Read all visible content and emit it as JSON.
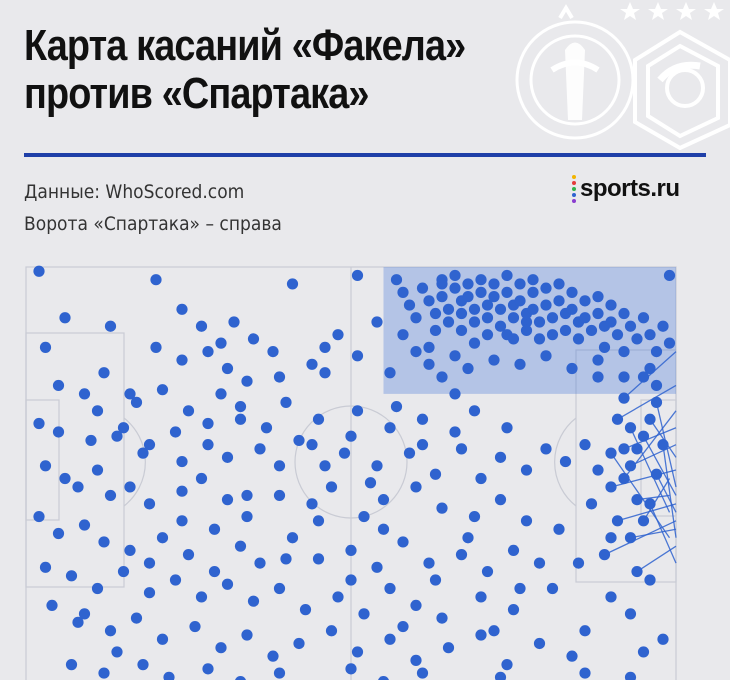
{
  "header": {
    "title_line1": "Карта касаний «Факела»",
    "title_line2": "против «Спартака»",
    "source": "Данные: WhoScored.com",
    "note": "Ворота «Спартака» – справа",
    "brand": "sports.ru"
  },
  "colors": {
    "touch": "#2f63cf",
    "pass_line": "#2f63cf",
    "highlight_zone": "#3d6fd6",
    "pitch_lines": "#c9cbd4",
    "rule": "#1f3fa8",
    "logo": "#ffffff"
  },
  "icons": [
    "fakel-logo-icon",
    "spartak-logo-icon",
    "stars-icon",
    "sports-ru-dots-icon"
  ],
  "chart_data": {
    "type": "scatter",
    "description_free": true,
    "x_range": [
      0,
      100
    ],
    "y_range": [
      0,
      100
    ],
    "attacking_direction": "right",
    "highlight_zone": {
      "x": [
        55,
        100
      ],
      "y": [
        70,
        100
      ]
    },
    "points": [
      [
        2,
        99
      ],
      [
        20,
        97
      ],
      [
        41,
        96
      ],
      [
        51,
        98
      ],
      [
        64,
        97
      ],
      [
        99,
        98
      ],
      [
        6,
        88
      ],
      [
        13,
        86
      ],
      [
        3,
        81
      ],
      [
        12,
        75
      ],
      [
        5,
        72
      ],
      [
        9,
        70
      ],
      [
        16,
        70
      ],
      [
        24,
        90
      ],
      [
        27,
        86
      ],
      [
        30,
        82
      ],
      [
        32,
        87
      ],
      [
        35,
        83
      ],
      [
        38,
        80
      ],
      [
        44,
        77
      ],
      [
        46,
        81
      ],
      [
        48,
        84
      ],
      [
        54,
        87
      ],
      [
        58,
        84
      ],
      [
        62,
        81
      ],
      [
        74,
        84
      ],
      [
        77,
        87
      ],
      [
        85,
        87
      ],
      [
        20,
        81
      ],
      [
        24,
        78
      ],
      [
        28,
        80
      ],
      [
        31,
        76
      ],
      [
        34,
        73
      ],
      [
        39,
        74
      ],
      [
        46,
        75
      ],
      [
        51,
        79
      ],
      [
        56,
        75
      ],
      [
        17,
        68
      ],
      [
        21,
        71
      ],
      [
        25,
        66
      ],
      [
        30,
        70
      ],
      [
        33,
        64
      ],
      [
        40,
        68
      ],
      [
        45,
        64
      ],
      [
        51,
        66
      ],
      [
        56,
        62
      ],
      [
        61,
        64
      ],
      [
        66,
        70
      ],
      [
        69,
        66
      ],
      [
        2,
        63
      ],
      [
        5,
        61
      ],
      [
        10,
        59
      ],
      [
        14,
        60
      ],
      [
        18,
        56
      ],
      [
        23,
        61
      ],
      [
        28,
        58
      ],
      [
        31,
        55
      ],
      [
        36,
        57
      ],
      [
        39,
        53
      ],
      [
        44,
        58
      ],
      [
        49,
        56
      ],
      [
        54,
        53
      ],
      [
        59,
        56
      ],
      [
        63,
        51
      ],
      [
        67,
        57
      ],
      [
        73,
        55
      ],
      [
        77,
        52
      ],
      [
        80,
        57
      ],
      [
        83,
        54
      ],
      [
        3,
        53
      ],
      [
        6,
        50
      ],
      [
        8,
        48
      ],
      [
        11,
        52
      ],
      [
        13,
        46
      ],
      [
        16,
        48
      ],
      [
        19,
        44
      ],
      [
        24,
        47
      ],
      [
        27,
        50
      ],
      [
        31,
        45
      ],
      [
        34,
        41
      ],
      [
        39,
        46
      ],
      [
        44,
        44
      ],
      [
        47,
        48
      ],
      [
        52,
        41
      ],
      [
        55,
        45
      ],
      [
        60,
        48
      ],
      [
        64,
        43
      ],
      [
        69,
        41
      ],
      [
        73,
        45
      ],
      [
        77,
        40
      ],
      [
        82,
        38
      ],
      [
        2,
        41
      ],
      [
        5,
        37
      ],
      [
        9,
        39
      ],
      [
        12,
        35
      ],
      [
        16,
        33
      ],
      [
        21,
        36
      ],
      [
        25,
        32
      ],
      [
        29,
        38
      ],
      [
        33,
        34
      ],
      [
        36,
        30
      ],
      [
        41,
        36
      ],
      [
        45,
        31
      ],
      [
        50,
        33
      ],
      [
        54,
        29
      ],
      [
        58,
        35
      ],
      [
        62,
        30
      ],
      [
        67,
        32
      ],
      [
        71,
        28
      ],
      [
        75,
        33
      ],
      [
        79,
        30
      ],
      [
        3,
        29
      ],
      [
        7,
        27
      ],
      [
        11,
        24
      ],
      [
        15,
        28
      ],
      [
        19,
        23
      ],
      [
        23,
        26
      ],
      [
        27,
        22
      ],
      [
        31,
        25
      ],
      [
        35,
        21
      ],
      [
        39,
        24
      ],
      [
        43,
        19
      ],
      [
        48,
        22
      ],
      [
        52,
        18
      ],
      [
        56,
        24
      ],
      [
        60,
        20
      ],
      [
        64,
        17
      ],
      [
        70,
        22
      ],
      [
        75,
        19
      ],
      [
        81,
        24
      ],
      [
        8,
        16
      ],
      [
        13,
        14
      ],
      [
        17,
        17
      ],
      [
        21,
        12
      ],
      [
        26,
        15
      ],
      [
        30,
        10
      ],
      [
        34,
        13
      ],
      [
        38,
        8
      ],
      [
        42,
        11
      ],
      [
        47,
        14
      ],
      [
        51,
        9
      ],
      [
        56,
        12
      ],
      [
        60,
        7
      ],
      [
        65,
        10
      ],
      [
        70,
        13
      ],
      [
        74,
        6
      ],
      [
        79,
        11
      ],
      [
        84,
        8
      ],
      [
        7,
        6
      ],
      [
        12,
        4
      ],
      [
        18,
        6
      ],
      [
        22,
        3
      ],
      [
        28,
        5
      ],
      [
        33,
        2
      ],
      [
        39,
        4
      ],
      [
        45,
        1
      ],
      [
        50,
        5
      ],
      [
        55,
        2
      ],
      [
        61,
        4
      ],
      [
        68,
        1
      ],
      [
        73,
        3
      ],
      [
        86,
        4
      ],
      [
        93,
        3
      ],
      [
        11,
        66
      ],
      [
        15,
        62
      ],
      [
        19,
        58
      ],
      [
        24,
        54
      ],
      [
        28,
        63
      ],
      [
        33,
        67
      ],
      [
        37,
        62
      ],
      [
        42,
        59
      ],
      [
        46,
        53
      ],
      [
        50,
        60
      ],
      [
        53,
        49
      ],
      [
        57,
        67
      ],
      [
        61,
        58
      ],
      [
        66,
        61
      ],
      [
        70,
        50
      ],
      [
        74,
        62
      ],
      [
        4,
        20
      ],
      [
        9,
        18
      ],
      [
        14,
        9
      ],
      [
        19,
        30
      ],
      [
        24,
        40
      ],
      [
        29,
        28
      ],
      [
        34,
        46
      ],
      [
        40,
        31
      ],
      [
        45,
        40
      ],
      [
        50,
        26
      ],
      [
        55,
        38
      ],
      [
        58,
        15
      ],
      [
        63,
        26
      ],
      [
        68,
        36
      ],
      [
        72,
        14
      ],
      [
        76,
        24
      ]
    ],
    "highlight_points": [
      [
        57,
        97
      ],
      [
        58,
        94
      ],
      [
        59,
        91
      ],
      [
        60,
        88
      ],
      [
        61,
        95
      ],
      [
        62,
        92
      ],
      [
        63,
        89
      ],
      [
        63,
        85
      ],
      [
        64,
        96
      ],
      [
        64,
        93
      ],
      [
        65,
        90
      ],
      [
        65,
        87
      ],
      [
        66,
        98
      ],
      [
        66,
        95
      ],
      [
        67,
        92
      ],
      [
        67,
        89
      ],
      [
        67,
        85
      ],
      [
        68,
        96
      ],
      [
        68,
        93
      ],
      [
        69,
        90
      ],
      [
        69,
        87
      ],
      [
        69,
        82
      ],
      [
        70,
        97
      ],
      [
        70,
        94
      ],
      [
        71,
        91
      ],
      [
        71,
        88
      ],
      [
        71,
        84
      ],
      [
        72,
        96
      ],
      [
        72,
        93
      ],
      [
        73,
        90
      ],
      [
        73,
        86
      ],
      [
        74,
        98
      ],
      [
        74,
        94
      ],
      [
        75,
        91
      ],
      [
        75,
        88
      ],
      [
        75,
        83
      ],
      [
        76,
        96
      ],
      [
        76,
        92
      ],
      [
        77,
        89
      ],
      [
        77,
        85
      ],
      [
        78,
        97
      ],
      [
        78,
        94
      ],
      [
        78,
        90
      ],
      [
        79,
        87
      ],
      [
        79,
        83
      ],
      [
        80,
        95
      ],
      [
        80,
        91
      ],
      [
        81,
        88
      ],
      [
        81,
        84
      ],
      [
        82,
        96
      ],
      [
        82,
        92
      ],
      [
        83,
        89
      ],
      [
        83,
        85
      ],
      [
        84,
        94
      ],
      [
        84,
        90
      ],
      [
        85,
        87
      ],
      [
        85,
        83
      ],
      [
        86,
        92
      ],
      [
        86,
        88
      ],
      [
        87,
        85
      ],
      [
        88,
        93
      ],
      [
        88,
        89
      ],
      [
        89,
        86
      ],
      [
        89,
        81
      ],
      [
        90,
        91
      ],
      [
        90,
        87
      ],
      [
        91,
        84
      ],
      [
        92,
        89
      ],
      [
        92,
        80
      ],
      [
        93,
        86
      ],
      [
        94,
        83
      ],
      [
        95,
        88
      ],
      [
        96,
        84
      ],
      [
        97,
        80
      ],
      [
        98,
        86
      ],
      [
        99,
        82
      ],
      [
        60,
        80
      ],
      [
        62,
        77
      ],
      [
        64,
        74
      ],
      [
        66,
        79
      ],
      [
        68,
        76
      ],
      [
        72,
        78
      ],
      [
        76,
        77
      ],
      [
        80,
        79
      ],
      [
        84,
        76
      ],
      [
        88,
        78
      ],
      [
        92,
        74
      ],
      [
        96,
        76
      ]
    ],
    "pass_lines": [
      [
        [
          92,
          69
        ],
        [
          100,
          80
        ]
      ],
      [
        [
          91,
          64
        ],
        [
          100,
          72
        ]
      ],
      [
        [
          92,
          57
        ],
        [
          100,
          62
        ]
      ],
      [
        [
          93,
          53
        ],
        [
          100,
          58
        ]
      ],
      [
        [
          90,
          48
        ],
        [
          100,
          52
        ]
      ],
      [
        [
          94,
          45
        ],
        [
          99,
          46
        ]
      ],
      [
        [
          91,
          40
        ],
        [
          100,
          44
        ]
      ],
      [
        [
          93,
          36
        ],
        [
          100,
          38
        ]
      ],
      [
        [
          89,
          32
        ],
        [
          100,
          40
        ]
      ],
      [
        [
          94,
          28
        ],
        [
          100,
          34
        ]
      ],
      [
        [
          96,
          64
        ],
        [
          100,
          55
        ]
      ],
      [
        [
          95,
          60
        ],
        [
          100,
          46
        ]
      ],
      [
        [
          97,
          51
        ],
        [
          100,
          42
        ]
      ],
      [
        [
          98,
          58
        ],
        [
          100,
          36
        ]
      ],
      [
        [
          96,
          44
        ],
        [
          100,
          30
        ]
      ],
      [
        [
          93,
          62
        ],
        [
          99,
          42
        ]
      ],
      [
        [
          95,
          40
        ],
        [
          99,
          50
        ]
      ],
      [
        [
          92,
          50
        ],
        [
          100,
          66
        ]
      ],
      [
        [
          97,
          68
        ],
        [
          100,
          48
        ]
      ],
      [
        [
          90,
          56
        ],
        [
          99,
          36
        ]
      ]
    ],
    "pass_points": [
      [
        92,
        69
      ],
      [
        91,
        64
      ],
      [
        92,
        57
      ],
      [
        93,
        53
      ],
      [
        90,
        48
      ],
      [
        94,
        45
      ],
      [
        91,
        40
      ],
      [
        93,
        36
      ],
      [
        89,
        32
      ],
      [
        94,
        28
      ],
      [
        96,
        64
      ],
      [
        95,
        60
      ],
      [
        97,
        51
      ],
      [
        98,
        58
      ],
      [
        96,
        44
      ],
      [
        93,
        62
      ],
      [
        95,
        40
      ],
      [
        92,
        50
      ],
      [
        97,
        68
      ],
      [
        90,
        56
      ],
      [
        95,
        74
      ],
      [
        97,
        72
      ],
      [
        88,
        74
      ],
      [
        90,
        36
      ],
      [
        94,
        57
      ],
      [
        86,
        58
      ],
      [
        88,
        52
      ],
      [
        87,
        44
      ],
      [
        85,
        30
      ],
      [
        90,
        22
      ],
      [
        96,
        26
      ],
      [
        93,
        18
      ],
      [
        98,
        12
      ],
      [
        86,
        14
      ],
      [
        95,
        9
      ]
    ]
  }
}
